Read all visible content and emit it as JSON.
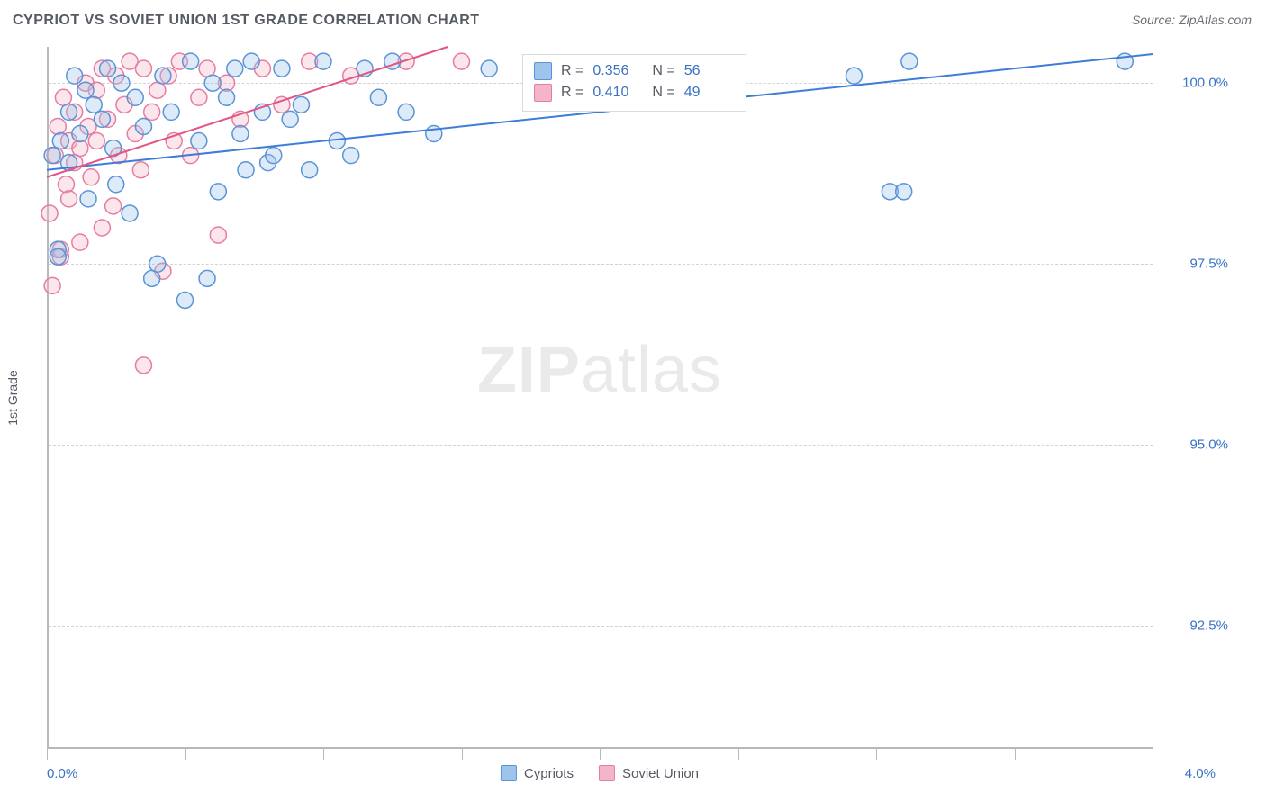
{
  "title": "CYPRIOT VS SOVIET UNION 1ST GRADE CORRELATION CHART",
  "source_prefix": "Source: ",
  "source_name": "ZipAtlas.com",
  "ylabel": "1st Grade",
  "watermark": {
    "bold": "ZIP",
    "rest": "atlas"
  },
  "chart": {
    "type": "scatter_with_regression",
    "background_color": "#ffffff",
    "grid_color": "#cfd2d7",
    "axis_color": "#b5b8bd",
    "label_color": "#555a63",
    "value_color": "#3a72c4",
    "xlim": [
      0.0,
      4.0
    ],
    "ylim": [
      90.8,
      100.5
    ],
    "x_tick_label_min": "0.0%",
    "x_tick_label_max": "4.0%",
    "x_tick_positions": [
      0.0,
      0.5,
      1.0,
      1.5,
      2.0,
      2.5,
      3.0,
      3.5,
      4.0
    ],
    "y_gridlines": [
      92.5,
      95.0,
      97.5,
      100.0
    ],
    "y_tick_labels": [
      "92.5%",
      "95.0%",
      "97.5%",
      "100.0%"
    ],
    "marker_radius": 9,
    "marker_fill_opacity": 0.35,
    "marker_stroke_width": 1.5,
    "line_width": 2.0,
    "series": [
      {
        "id": "cypriots",
        "label": "Cypriots",
        "color_fill": "#9ec4ec",
        "color_stroke": "#5b94d6",
        "line_color": "#3d7dd8",
        "R": "0.356",
        "N": "56",
        "regression": {
          "x1": 0.0,
          "y1": 98.8,
          "x2": 4.0,
          "y2": 100.4
        },
        "points": [
          [
            0.02,
            99.0
          ],
          [
            0.04,
            97.7
          ],
          [
            0.04,
            97.6
          ],
          [
            0.05,
            99.2
          ],
          [
            0.08,
            98.9
          ],
          [
            0.08,
            99.6
          ],
          [
            0.1,
            100.1
          ],
          [
            0.12,
            99.3
          ],
          [
            0.14,
            99.9
          ],
          [
            0.15,
            98.4
          ],
          [
            0.17,
            99.7
          ],
          [
            0.2,
            99.5
          ],
          [
            0.22,
            100.2
          ],
          [
            0.24,
            99.1
          ],
          [
            0.25,
            98.6
          ],
          [
            0.27,
            100.0
          ],
          [
            0.3,
            98.2
          ],
          [
            0.32,
            99.8
          ],
          [
            0.35,
            99.4
          ],
          [
            0.38,
            97.3
          ],
          [
            0.4,
            97.5
          ],
          [
            0.42,
            100.1
          ],
          [
            0.45,
            99.6
          ],
          [
            0.5,
            97.0
          ],
          [
            0.52,
            100.3
          ],
          [
            0.55,
            99.2
          ],
          [
            0.58,
            97.3
          ],
          [
            0.6,
            100.0
          ],
          [
            0.62,
            98.5
          ],
          [
            0.65,
            99.8
          ],
          [
            0.68,
            100.2
          ],
          [
            0.7,
            99.3
          ],
          [
            0.72,
            98.8
          ],
          [
            0.74,
            100.3
          ],
          [
            0.78,
            99.6
          ],
          [
            0.8,
            98.9
          ],
          [
            0.82,
            99.0
          ],
          [
            0.85,
            100.2
          ],
          [
            0.88,
            99.5
          ],
          [
            0.92,
            99.7
          ],
          [
            0.95,
            98.8
          ],
          [
            1.0,
            100.3
          ],
          [
            1.05,
            99.2
          ],
          [
            1.1,
            99.0
          ],
          [
            1.15,
            100.2
          ],
          [
            1.2,
            99.8
          ],
          [
            1.25,
            100.3
          ],
          [
            1.3,
            99.6
          ],
          [
            1.4,
            99.3
          ],
          [
            1.6,
            100.2
          ],
          [
            1.9,
            100.1
          ],
          [
            2.92,
            100.1
          ],
          [
            3.05,
            98.5
          ],
          [
            3.1,
            98.5
          ],
          [
            3.12,
            100.3
          ],
          [
            3.9,
            100.3
          ]
        ]
      },
      {
        "id": "soviet",
        "label": "Soviet Union",
        "color_fill": "#f3b6c8",
        "color_stroke": "#e87ca0",
        "line_color": "#e25584",
        "R": "0.410",
        "N": "49",
        "regression": {
          "x1": 0.0,
          "y1": 98.7,
          "x2": 1.45,
          "y2": 100.5
        },
        "points": [
          [
            0.01,
            98.2
          ],
          [
            0.02,
            97.2
          ],
          [
            0.03,
            99.0
          ],
          [
            0.04,
            99.4
          ],
          [
            0.05,
            97.6
          ],
          [
            0.05,
            97.7
          ],
          [
            0.06,
            99.8
          ],
          [
            0.07,
            98.6
          ],
          [
            0.08,
            99.2
          ],
          [
            0.08,
            98.4
          ],
          [
            0.1,
            99.6
          ],
          [
            0.1,
            98.9
          ],
          [
            0.12,
            99.1
          ],
          [
            0.12,
            97.8
          ],
          [
            0.14,
            100.0
          ],
          [
            0.15,
            99.4
          ],
          [
            0.16,
            98.7
          ],
          [
            0.18,
            99.9
          ],
          [
            0.18,
            99.2
          ],
          [
            0.2,
            100.2
          ],
          [
            0.2,
            98.0
          ],
          [
            0.22,
            99.5
          ],
          [
            0.24,
            98.3
          ],
          [
            0.25,
            100.1
          ],
          [
            0.26,
            99.0
          ],
          [
            0.28,
            99.7
          ],
          [
            0.3,
            100.3
          ],
          [
            0.32,
            99.3
          ],
          [
            0.34,
            98.8
          ],
          [
            0.35,
            100.2
          ],
          [
            0.35,
            96.1
          ],
          [
            0.38,
            99.6
          ],
          [
            0.4,
            99.9
          ],
          [
            0.42,
            97.4
          ],
          [
            0.44,
            100.1
          ],
          [
            0.46,
            99.2
          ],
          [
            0.48,
            100.3
          ],
          [
            0.52,
            99.0
          ],
          [
            0.55,
            99.8
          ],
          [
            0.58,
            100.2
          ],
          [
            0.62,
            97.9
          ],
          [
            0.65,
            100.0
          ],
          [
            0.7,
            99.5
          ],
          [
            0.78,
            100.2
          ],
          [
            0.85,
            99.7
          ],
          [
            0.95,
            100.3
          ],
          [
            1.1,
            100.1
          ],
          [
            1.3,
            100.3
          ],
          [
            1.5,
            100.3
          ]
        ]
      }
    ],
    "stats_labels": {
      "R": "R =",
      "N": "N ="
    },
    "legend_swatch_fill_opacity": 0.5
  }
}
